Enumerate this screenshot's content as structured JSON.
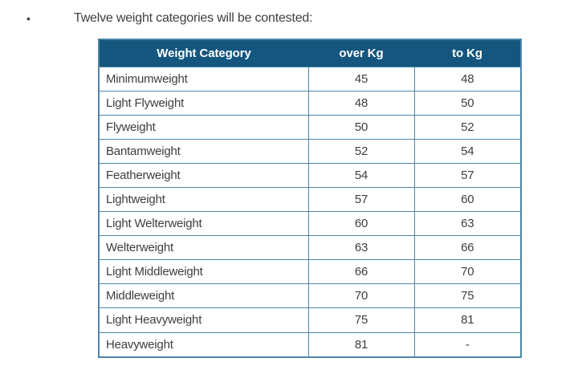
{
  "intro": {
    "bullet": "•",
    "text": "Twelve weight categories will be contested:"
  },
  "table": {
    "headers": [
      "Weight Category",
      "over Kg",
      "to Kg"
    ],
    "rows": [
      [
        "Minimumweight",
        "45",
        "48"
      ],
      [
        "Light Flyweight",
        "48",
        "50"
      ],
      [
        "Flyweight",
        "50",
        "52"
      ],
      [
        "Bantamweight",
        "52",
        "54"
      ],
      [
        "Featherweight",
        "54",
        "57"
      ],
      [
        "Lightweight",
        "57",
        "60"
      ],
      [
        "Light Welterweight",
        "60",
        "63"
      ],
      [
        "Welterweight",
        "63",
        "66"
      ],
      [
        "Light Middleweight",
        "66",
        "70"
      ],
      [
        "Middleweight",
        "70",
        "75"
      ],
      [
        "Light Heavyweight",
        "75",
        "81"
      ],
      [
        "Heavyweight",
        "81",
        "-"
      ]
    ]
  },
  "colors": {
    "header_bg": "#14567E",
    "header_text": "#FFFFFF",
    "border": "#4D86AA",
    "text": "#3B3E40",
    "background": "#FFFFFF"
  }
}
